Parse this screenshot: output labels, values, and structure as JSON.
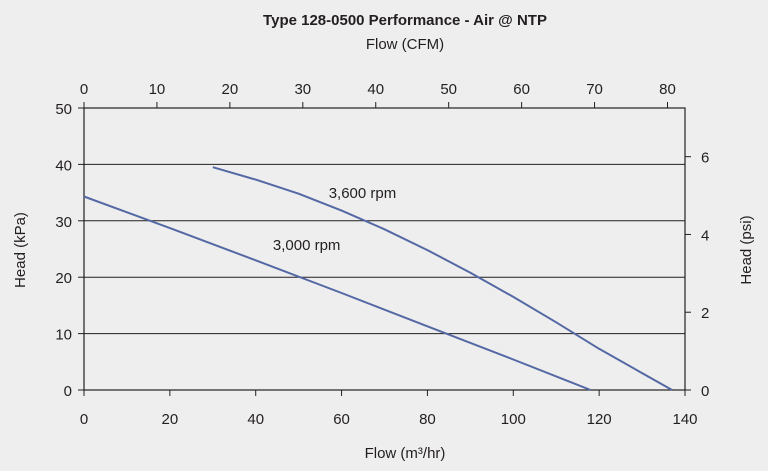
{
  "chart_data": {
    "type": "line",
    "title": "Type 128-0500 Performance - Air @ NTP",
    "subtitle": "Flow (CFM)",
    "xlabel": "Flow (m³/hr)",
    "ylabel": "Head (kPa)",
    "ylabel_right": "Head (psi)",
    "xlim": [
      0,
      140
    ],
    "ylim": [
      0,
      50
    ],
    "x_ticks": [
      0,
      20,
      40,
      60,
      80,
      100,
      120,
      140
    ],
    "y_ticks": [
      0,
      10,
      20,
      30,
      40,
      50
    ],
    "top_axis": {
      "label": "Flow (CFM)",
      "ticks": [
        0,
        10,
        20,
        30,
        40,
        50,
        60,
        70,
        80
      ]
    },
    "right_axis": {
      "label": "Head (psi)",
      "ticks": [
        0,
        2,
        4,
        6
      ]
    },
    "grid": "horizontal",
    "line_color": "#5468a4",
    "series": [
      {
        "name": "3,600 rpm",
        "x": [
          30,
          40,
          50,
          60,
          70,
          80,
          90,
          100,
          110,
          120,
          130,
          137
        ],
        "y": [
          39.5,
          37.3,
          34.8,
          31.8,
          28.5,
          24.8,
          20.8,
          16.5,
          12.0,
          7.3,
          3.0,
          0
        ]
      },
      {
        "name": "3,000 rpm",
        "x": [
          0,
          20,
          40,
          60,
          80,
          100,
          118
        ],
        "y": [
          34.3,
          28.7,
          23.0,
          17.2,
          11.3,
          5.4,
          0
        ]
      }
    ]
  }
}
